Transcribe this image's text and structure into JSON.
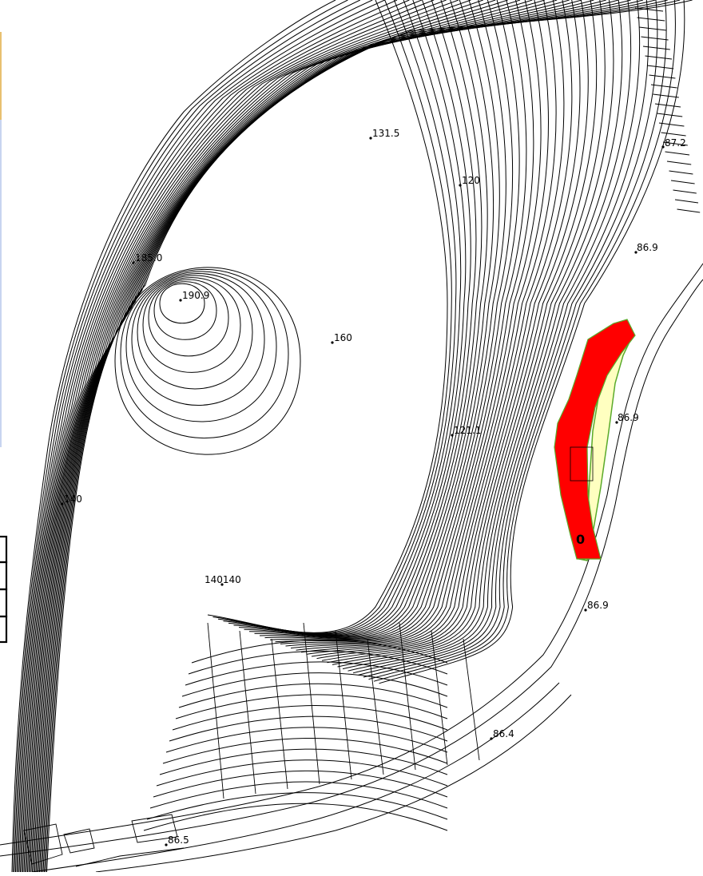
{
  "map": {
    "colors": {
      "hazard_zone": "#ff0000",
      "caution_zone": "#ffffc0",
      "zone_border": "#5aaa2a",
      "contour": "#000000"
    },
    "elevation_labels": [
      {
        "id": "pt-131-5",
        "text": "131.5"
      },
      {
        "id": "pt-120",
        "text": "120"
      },
      {
        "id": "pt-87-2",
        "text": "87.2"
      },
      {
        "id": "pt-86-9-a",
        "text": "86.9"
      },
      {
        "id": "pt-185-0",
        "text": "185.0"
      },
      {
        "id": "pt-190-9",
        "text": "190.9"
      },
      {
        "id": "pt-160",
        "text": "160"
      },
      {
        "id": "pt-86-9-b",
        "text": "86.9"
      },
      {
        "id": "pt-121-1",
        "text": "121.1"
      },
      {
        "id": "pt-140-a",
        "text": "140"
      },
      {
        "id": "pt-140140",
        "text": "140140"
      },
      {
        "id": "pt-86-9-c",
        "text": "86.9"
      },
      {
        "id": "pt-86-4",
        "text": "86.4"
      },
      {
        "id": "pt-86-5",
        "text": "86.5"
      }
    ],
    "edge_marker": "",
    "zone_marker": "0"
  }
}
